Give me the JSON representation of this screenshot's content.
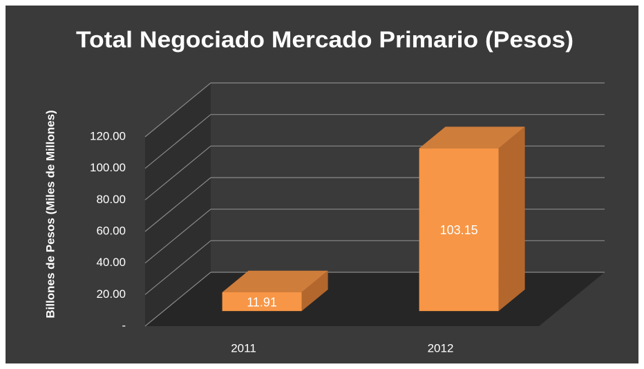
{
  "chart_data": {
    "type": "bar3d",
    "title": "Total Negociado Mercado Primario (Pesos)",
    "y_label": "Billones de Pesos (Miles de Millones)",
    "categories": [
      "2011",
      "2012"
    ],
    "values": [
      11.91,
      103.15
    ],
    "color": "#f79646",
    "ylim": [
      0,
      120
    ],
    "yticks": [
      {
        "value": 0,
        "label": "-"
      },
      {
        "value": 20,
        "label": "20.00"
      },
      {
        "value": 40,
        "label": "40.00"
      },
      {
        "value": 60,
        "label": "60.00"
      },
      {
        "value": 80,
        "label": "80.00"
      },
      {
        "value": 100,
        "label": "100.00"
      },
      {
        "value": 120,
        "label": "120.00"
      }
    ],
    "grid": true
  }
}
